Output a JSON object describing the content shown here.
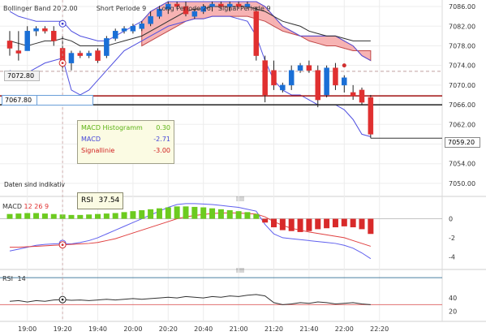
{
  "legend_top": {
    "labels": [
      "Bollinger Band",
      "20",
      "2.00",
      "Short Periode",
      "9",
      "Long Periode",
      "26",
      "Signal Periode",
      "9"
    ]
  },
  "price_tags": {
    "crosshair_price": "7072.80",
    "line_price": "7067.80",
    "last_price": "7059.20"
  },
  "tooltip": {
    "rows": [
      {
        "label": "MACD Histogramm",
        "value": "0.30"
      },
      {
        "label": "MACD",
        "value": "-2.71"
      },
      {
        "label": "Signallinie",
        "value": "-3.00"
      }
    ]
  },
  "rsi_tooltip": {
    "label": "RSI",
    "value": "37.54"
  },
  "note": "Daten sind indikativ",
  "macd_label": {
    "name": "MACD",
    "p1": "12",
    "p2": "26",
    "p3": "9"
  },
  "rsi_label": {
    "name": "RSI",
    "period": "14"
  },
  "colors": {
    "up_candle": "#1a6fd6",
    "down_candle": "#e03030",
    "bollinger": "#5050e0",
    "cloud": "#f49a9a",
    "macd_line": "#6060ee",
    "signal_line": "#e04040",
    "hist_pos": "#6ccb1f",
    "hist_neg": "#d82a2a",
    "rsi_line": "#333333",
    "rsi_bounds": "#4a7fa0"
  },
  "chart_data": [
    {
      "type": "candlestick",
      "title": "",
      "x_ticks": [
        "19:00",
        "19:20",
        "19:40",
        "20:00",
        "20:20",
        "20:40",
        "21:00",
        "21:20",
        "21:40",
        "22:00",
        "22:20"
      ],
      "y_ticks": [
        7086.0,
        7082.0,
        7078.0,
        7074.0,
        7070.0,
        7066.0,
        7062.0,
        7058.0,
        7054.0,
        7050.0
      ],
      "ylim": [
        7048.0,
        7087.0
      ],
      "candles": [
        {
          "t": "18:50",
          "o": 7079,
          "h": 7081,
          "l": 7076,
          "c": 7077.5
        },
        {
          "t": "18:55",
          "o": 7077,
          "h": 7081,
          "l": 7075,
          "c": 7076.5
        },
        {
          "t": "19:00",
          "o": 7077,
          "h": 7082,
          "l": 7077,
          "c": 7081
        },
        {
          "t": "19:05",
          "o": 7081,
          "h": 7082,
          "l": 7080,
          "c": 7081.5
        },
        {
          "t": "19:10",
          "o": 7081.5,
          "h": 7082,
          "l": 7080.5,
          "c": 7081
        },
        {
          "t": "19:15",
          "o": 7081,
          "h": 7082,
          "l": 7078,
          "c": 7079
        },
        {
          "t": "19:20",
          "o": 7077.5,
          "h": 7080,
          "l": 7072.8,
          "c": 7074.5
        },
        {
          "t": "19:25",
          "o": 7074.5,
          "h": 7077,
          "l": 7073,
          "c": 7076.5
        },
        {
          "t": "19:30",
          "o": 7076.5,
          "h": 7077,
          "l": 7075.5,
          "c": 7076
        },
        {
          "t": "19:35",
          "o": 7076,
          "h": 7077,
          "l": 7075.5,
          "c": 7076.5
        },
        {
          "t": "19:40",
          "o": 7077,
          "h": 7077.5,
          "l": 7074.5,
          "c": 7075
        },
        {
          "t": "19:45",
          "o": 7076,
          "h": 7080,
          "l": 7075.5,
          "c": 7079.5
        },
        {
          "t": "19:50",
          "o": 7079.5,
          "h": 7081.5,
          "l": 7079,
          "c": 7081
        },
        {
          "t": "19:55",
          "o": 7081,
          "h": 7082,
          "l": 7080.5,
          "c": 7081.5
        },
        {
          "t": "20:00",
          "o": 7081,
          "h": 7082.5,
          "l": 7080.5,
          "c": 7082
        },
        {
          "t": "20:05",
          "o": 7081.5,
          "h": 7083,
          "l": 7081,
          "c": 7082.5
        },
        {
          "t": "20:10",
          "o": 7082.5,
          "h": 7085,
          "l": 7082,
          "c": 7084
        },
        {
          "t": "20:15",
          "o": 7084,
          "h": 7086,
          "l": 7083.5,
          "c": 7085.5
        },
        {
          "t": "20:20",
          "o": 7085.5,
          "h": 7087,
          "l": 7084.5,
          "c": 7086.5
        },
        {
          "t": "20:25",
          "o": 7086.5,
          "h": 7087,
          "l": 7085.5,
          "c": 7086
        },
        {
          "t": "20:30",
          "o": 7086,
          "h": 7087,
          "l": 7084,
          "c": 7084.5
        },
        {
          "t": "20:35",
          "o": 7084,
          "h": 7085.5,
          "l": 7083.5,
          "c": 7085
        },
        {
          "t": "20:40",
          "o": 7085,
          "h": 7086.5,
          "l": 7084.5,
          "c": 7086
        },
        {
          "t": "20:45",
          "o": 7086,
          "h": 7087,
          "l": 7085,
          "c": 7086.5
        },
        {
          "t": "20:50",
          "o": 7086.5,
          "h": 7087,
          "l": 7085.5,
          "c": 7086
        },
        {
          "t": "20:55",
          "o": 7086,
          "h": 7087,
          "l": 7085,
          "c": 7086.5
        },
        {
          "t": "21:00",
          "o": 7086.5,
          "h": 7087,
          "l": 7085.5,
          "c": 7086
        },
        {
          "t": "21:05",
          "o": 7086,
          "h": 7087,
          "l": 7085.5,
          "c": 7086.5
        },
        {
          "t": "21:10",
          "o": 7085,
          "h": 7086,
          "l": 7075,
          "c": 7076
        },
        {
          "t": "21:15",
          "o": 7075,
          "h": 7076,
          "l": 7066.5,
          "c": 7068
        },
        {
          "t": "21:20",
          "o": 7073,
          "h": 7075,
          "l": 7069,
          "c": 7070
        },
        {
          "t": "21:25",
          "o": 7069,
          "h": 7070.5,
          "l": 7068.5,
          "c": 7070
        },
        {
          "t": "21:30",
          "o": 7070,
          "h": 7074,
          "l": 7069,
          "c": 7073
        },
        {
          "t": "21:35",
          "o": 7073,
          "h": 7074.5,
          "l": 7072.5,
          "c": 7074
        },
        {
          "t": "21:40",
          "o": 7074,
          "h": 7075,
          "l": 7072.5,
          "c": 7073
        },
        {
          "t": "21:45",
          "o": 7073,
          "h": 7074,
          "l": 7065.5,
          "c": 7067
        },
        {
          "t": "21:50",
          "o": 7068,
          "h": 7074,
          "l": 7067.5,
          "c": 7073.5
        },
        {
          "t": "21:55",
          "o": 7073.5,
          "h": 7074.5,
          "l": 7069,
          "c": 7070
        },
        {
          "t": "22:00",
          "o": 7070,
          "h": 7072,
          "l": 7068.5,
          "c": 7071.5
        },
        {
          "t": "22:05",
          "o": 7068.5,
          "h": 7070,
          "l": 7067,
          "c": 7067.8
        },
        {
          "t": "22:10",
          "o": 7069,
          "h": 7069.5,
          "l": 7066,
          "c": 7066.5
        },
        {
          "t": "22:15",
          "o": 7067.5,
          "h": 7068,
          "l": 7059.2,
          "c": 7060
        }
      ],
      "bollinger_upper": [
        7085,
        7084,
        7083.5,
        7083,
        7083,
        7083,
        7083,
        7081,
        7080,
        7079.5,
        7079,
        7079,
        7080,
        7081,
        7082,
        7083,
        7085,
        7086,
        7087,
        7087,
        7087,
        7087,
        7087,
        7087,
        7087,
        7087,
        7087,
        7087,
        7087,
        7086,
        7084,
        7082,
        7081,
        7080,
        7080,
        7080,
        7080,
        7080,
        7079,
        7078,
        7076,
        7075
      ],
      "bollinger_lower": [
        7073,
        7072,
        7072.5,
        7073.5,
        7074.5,
        7075,
        7075.5,
        7069,
        7068,
        7069,
        7071,
        7073,
        7075,
        7077,
        7078,
        7079,
        7080,
        7081,
        7082,
        7082.5,
        7083,
        7083.5,
        7083.5,
        7084,
        7084,
        7084,
        7083.5,
        7083,
        7080,
        7075,
        7071,
        7069,
        7068,
        7068,
        7067,
        7066,
        7066,
        7066,
        7065,
        7063,
        7060,
        7059.5
      ],
      "bollinger_middle": [
        7079,
        7078.5,
        7078,
        7078.5,
        7079,
        7079,
        7079.5,
        7079,
        7078,
        7078,
        7078,
        7078,
        7078.5,
        7079,
        7079.5,
        7080,
        7081,
        7082,
        7083,
        7084,
        7085,
        7085.5,
        7085.5,
        7086,
        7086,
        7086,
        7086,
        7086,
        7085.5,
        7085,
        7084,
        7083,
        7082.5,
        7082,
        7081,
        7080.5,
        7080,
        7080,
        7079.5,
        7079,
        7079,
        7079
      ],
      "horizontal_lines": [
        {
          "y": 7067.8,
          "color": "#a01010"
        },
        {
          "y": 7066.0,
          "color": "#222222"
        },
        {
          "y": 7072.8,
          "color": "#c0a0a0",
          "dashed": true
        }
      ]
    },
    {
      "type": "bar",
      "title": "",
      "y_ticks": [
        0,
        -2,
        -4
      ],
      "ylim": [
        -5,
        1.5
      ],
      "histogram": [
        0.5,
        0.55,
        0.6,
        0.6,
        0.55,
        0.5,
        0.45,
        0.4,
        0.4,
        0.45,
        0.5,
        0.55,
        0.6,
        0.7,
        0.8,
        0.9,
        1.0,
        1.1,
        1.2,
        1.3,
        1.3,
        1.25,
        1.2,
        1.1,
        1.0,
        0.9,
        0.8,
        0.7,
        0.5,
        -0.4,
        -0.9,
        -1.2,
        -1.3,
        -1.4,
        -1.3,
        -1.1,
        -1.0,
        -0.9,
        -0.8,
        -0.9,
        -1.1,
        -1.6
      ],
      "macd": [
        -3.4,
        -3.2,
        -3.0,
        -2.8,
        -2.7,
        -2.65,
        -2.6,
        -2.65,
        -2.5,
        -2.3,
        -2.0,
        -1.6,
        -1.2,
        -0.8,
        -0.4,
        0.0,
        0.4,
        0.8,
        1.2,
        1.5,
        1.6,
        1.6,
        1.55,
        1.5,
        1.4,
        1.3,
        1.2,
        1.0,
        0.8,
        -0.6,
        -1.6,
        -2.0,
        -2.1,
        -2.2,
        -2.3,
        -2.4,
        -2.5,
        -2.6,
        -2.8,
        -3.1,
        -3.6,
        -4.2
      ],
      "signal": [
        -3.0,
        -3.0,
        -2.95,
        -2.9,
        -2.85,
        -2.8,
        -2.75,
        -2.7,
        -2.65,
        -2.6,
        -2.5,
        -2.3,
        -2.1,
        -1.8,
        -1.5,
        -1.2,
        -0.9,
        -0.6,
        -0.3,
        0.0,
        0.2,
        0.35,
        0.45,
        0.55,
        0.6,
        0.62,
        0.6,
        0.55,
        0.5,
        0.2,
        -0.3,
        -0.7,
        -1.0,
        -1.2,
        -1.4,
        -1.55,
        -1.7,
        -1.85,
        -2.0,
        -2.3,
        -2.6,
        -2.9
      ]
    },
    {
      "type": "line",
      "title": "",
      "y_ticks": [
        40,
        20
      ],
      "ylim": [
        10,
        75
      ],
      "bounds": [
        70,
        30
      ],
      "values": [
        35,
        36,
        34,
        36,
        35,
        37,
        37.5,
        36.5,
        37,
        36,
        37,
        38,
        37,
        38,
        39,
        38,
        39,
        40,
        41,
        40,
        42,
        41,
        40,
        42,
        41,
        43,
        42,
        44,
        45,
        43,
        33,
        30,
        31,
        33,
        32,
        34,
        33,
        31,
        32,
        33,
        31,
        30
      ]
    }
  ]
}
